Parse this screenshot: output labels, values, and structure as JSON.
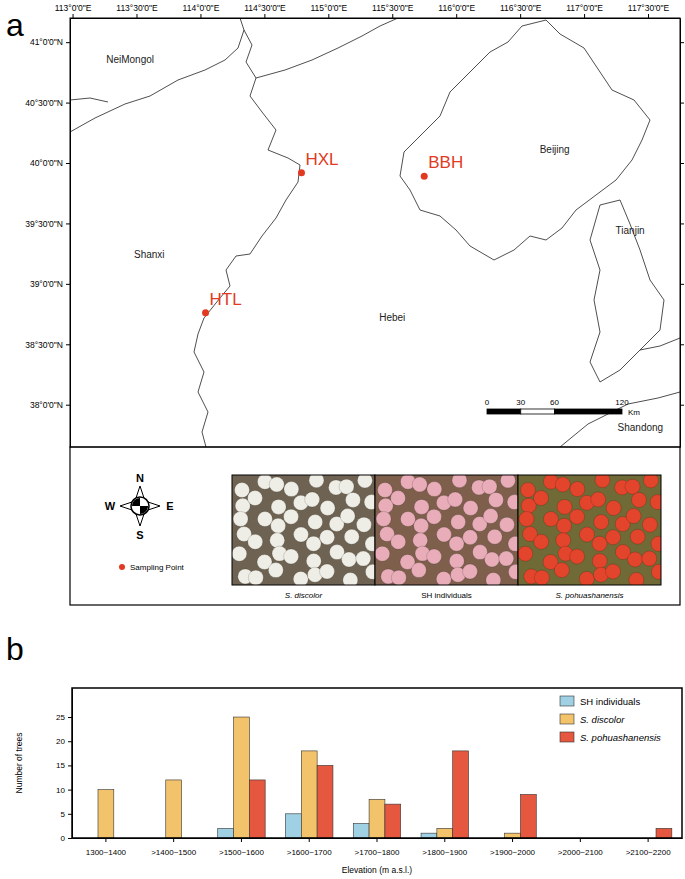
{
  "map": {
    "panel_label": "a",
    "xlim": [
      112.98,
      117.75
    ],
    "ylim": [
      37.65,
      41.2
    ],
    "xticks": [
      {
        "value": 113,
        "label": "113°0'0\"E"
      },
      {
        "value": 113.5,
        "label": "113°30'0\"E"
      },
      {
        "value": 114,
        "label": "114°0'0\"E"
      },
      {
        "value": 114.5,
        "label": "114°30'0\"E"
      },
      {
        "value": 115,
        "label": "115°0'0\"E"
      },
      {
        "value": 115.5,
        "label": "115°30'0\"E"
      },
      {
        "value": 116,
        "label": "116°0'0\"E"
      },
      {
        "value": 116.5,
        "label": "116°30'0\"E"
      },
      {
        "value": 117,
        "label": "117°0'0\"E"
      },
      {
        "value": 117.5,
        "label": "117°30'0\"E"
      }
    ],
    "yticks": [
      {
        "value": 38,
        "label": "38°0'0\"N"
      },
      {
        "value": 38.5,
        "label": "38°30'0\"N"
      },
      {
        "value": 39,
        "label": "39°0'0\"N"
      },
      {
        "value": 39.5,
        "label": "39°30'0\"N"
      },
      {
        "value": 40,
        "label": "40°0'0\"N"
      },
      {
        "value": 40.5,
        "label": "40°30'0\"N"
      },
      {
        "value": 41,
        "label": "41°0'0\"N"
      }
    ],
    "regions": [
      {
        "label": "NeiMongol",
        "lon": 113.45,
        "lat": 40.83
      },
      {
        "label": "Shanxi",
        "lon": 113.6,
        "lat": 39.21
      },
      {
        "label": "Hebei",
        "lon": 115.5,
        "lat": 38.69
      },
      {
        "label": "Beijing",
        "lon": 116.77,
        "lat": 40.08
      },
      {
        "label": "Tianjin",
        "lon": 117.36,
        "lat": 39.41
      },
      {
        "label": "Shandong",
        "lon": 117.44,
        "lat": 37.78
      }
    ],
    "points": [
      {
        "label": "HXL",
        "lon": 114.79,
        "lat": 39.92
      },
      {
        "label": "BBH",
        "lon": 115.75,
        "lat": 39.89
      },
      {
        "label": "HTL",
        "lon": 114.04,
        "lat": 38.76
      }
    ],
    "scale_bar": {
      "ticks": [
        0,
        30,
        60,
        120
      ],
      "unit": "Km"
    },
    "compass": {
      "north": "N",
      "south": "S",
      "west": "W",
      "east": "E"
    },
    "legend_label": "Sampling Point",
    "photos": [
      {
        "caption": "S. discolor"
      },
      {
        "caption": "SH individuals"
      },
      {
        "caption": "S. pohuashanensis"
      }
    ]
  },
  "chart_data": {
    "type": "bar",
    "panel_label": "b",
    "x_label": "Elevation (m a.s.l.)",
    "y_label": "Number of trees",
    "categories": [
      "1300~1400",
      ">1400~1500",
      ">1500~1600",
      ">1600~1700",
      ">1700~1800",
      ">1800~1900",
      ">1900~2000",
      ">2000~2100",
      ">2100~2200"
    ],
    "series": [
      {
        "name": "SH individuals",
        "color": "#9fd0e4",
        "values": [
          0,
          0,
          2,
          5,
          3,
          1,
          0,
          0,
          0
        ]
      },
      {
        "name": "S. discolor",
        "color": "#f3c36c",
        "values": [
          10,
          12,
          25,
          18,
          8,
          2,
          1,
          0,
          0
        ]
      },
      {
        "name": "S. pohuashanensis",
        "color": "#e5573f",
        "values": [
          0,
          0,
          12,
          15,
          7,
          18,
          9,
          0,
          2
        ]
      }
    ],
    "ylim": [
      0,
      31
    ],
    "yticks": [
      0,
      5,
      10,
      15,
      20,
      25
    ],
    "grid": false,
    "legend": "upper right"
  }
}
